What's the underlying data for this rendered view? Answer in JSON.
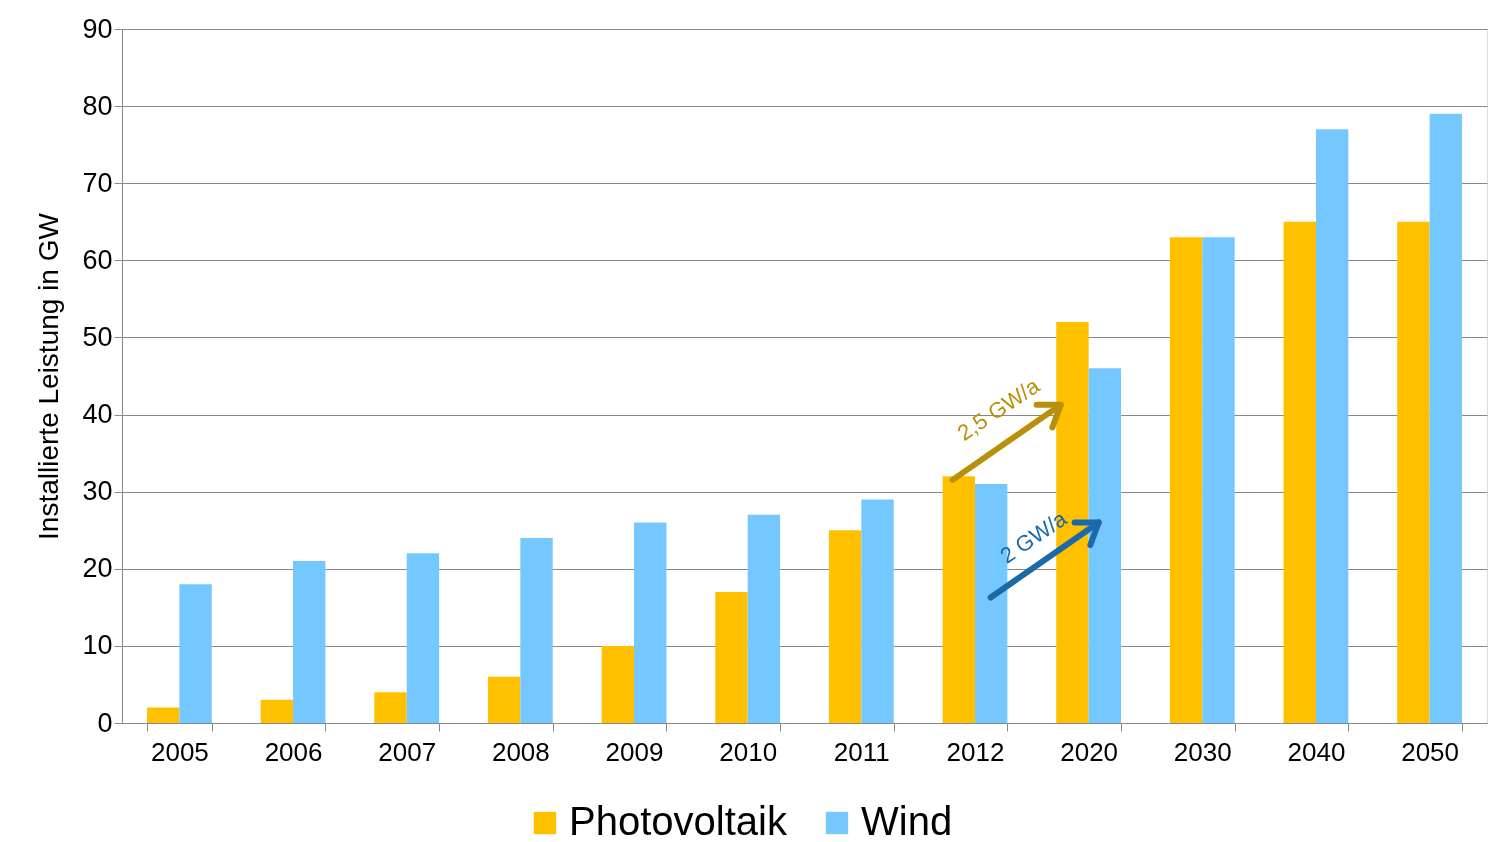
{
  "chart_data": {
    "type": "bar",
    "ylabel": "Installierte  Leistung in GW",
    "categories": [
      "2005",
      "2006",
      "2007",
      "2008",
      "2009",
      "2010",
      "2011",
      "2012",
      "2020",
      "2030",
      "2040",
      "2050"
    ],
    "series": [
      {
        "name": "Photovoltaik",
        "color": "#ffc000",
        "values": [
          2,
          3,
          4,
          6,
          10,
          17,
          25,
          32,
          52,
          63,
          65,
          65
        ]
      },
      {
        "name": "Wind",
        "color": "#75c8ff",
        "values": [
          18,
          21,
          22,
          24,
          26,
          27,
          29,
          31,
          46,
          63,
          77,
          79
        ]
      }
    ],
    "ylim": [
      0,
      90
    ],
    "yticks": [
      0,
      10,
      20,
      30,
      40,
      50,
      60,
      70,
      80,
      90
    ],
    "grid": "y",
    "legend": "bottom",
    "annotations": [
      {
        "text": "2,5 GW/a",
        "x": "2020",
        "y": 41
      },
      {
        "text": "2 GW/a",
        "x": "2020",
        "y": 26
      }
    ]
  }
}
